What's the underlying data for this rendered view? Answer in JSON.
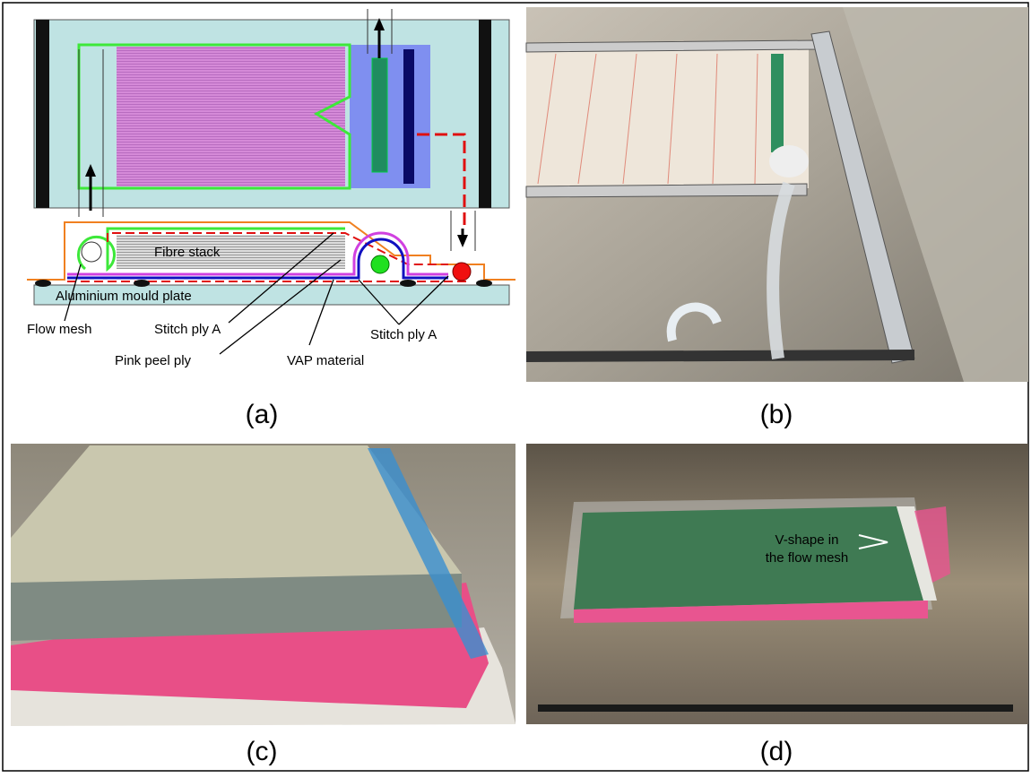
{
  "panel_a": {
    "labels": {
      "fibre_stack": "Fibre stack",
      "mould_plate": "Aluminium mould plate",
      "flow_mesh": "Flow mesh",
      "stitch_ply_left": "Stitch ply A",
      "peel_ply": "Pink peel ply",
      "vap": "VAP material",
      "stitch_ply_right": "Stitch ply A"
    },
    "caption": "(a)"
  },
  "panel_b": {
    "caption": "(b)"
  },
  "panel_c": {
    "caption": "(c)"
  },
  "panel_d": {
    "annotation": [
      "V-shape in",
      "the flow mesh"
    ],
    "caption": "(d)"
  }
}
